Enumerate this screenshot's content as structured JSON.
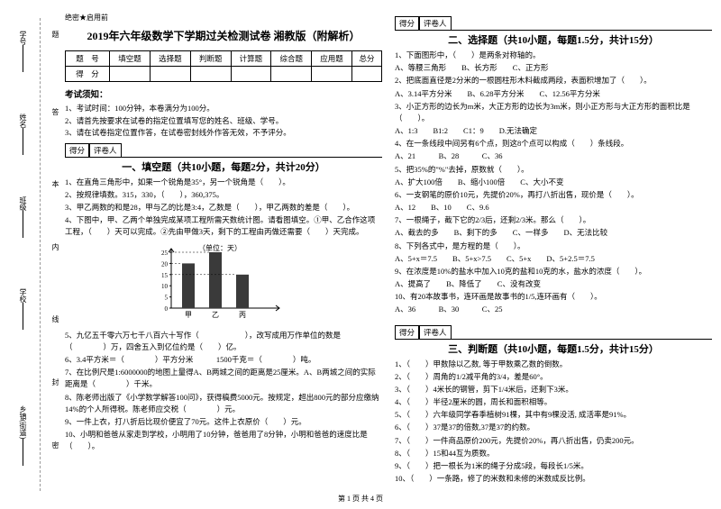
{
  "binding": {
    "secret": "绝密★启用前",
    "labels": [
      "学号",
      "姓名",
      "班级",
      "学校",
      "乡镇(街道)"
    ],
    "markers": [
      "题",
      "答",
      "本",
      "内",
      "线",
      "封",
      "密"
    ]
  },
  "header": {
    "title": "2019年六年级数学下学期过关检测试卷 湘教版（附解析）"
  },
  "scoreTable": {
    "r1": [
      "题　号",
      "填空题",
      "选择题",
      "判断题",
      "计算题",
      "综合题",
      "应用题",
      "总分"
    ],
    "r2": [
      "得　分",
      "",
      "",
      "",
      "",
      "",
      "",
      ""
    ]
  },
  "notice": {
    "h": "考试须知：",
    "l1": "1、考试时间：100分钟，本卷满分为100分。",
    "l2": "2、请首先按要求在试卷的指定位置填写您的姓名、班级、学号。",
    "l3": "3、请在试卷指定位置作答，在试卷密封线外作答无效，不予评分。"
  },
  "secHead": {
    "a": "得分",
    "b": "评卷人"
  },
  "sec1": {
    "title": "一、填空题（共10小题，每题2分，共计20分）",
    "q1": "1、在直角三角形中，如果一个锐角是35°，另一个锐角是（　　）。",
    "q2": "2、按规律填数。315，330，（　　），360,375。",
    "q3": "3、甲乙两数的和是28，甲与乙的比是3:4，乙数是（　　），甲乙两数的差是（　　）。",
    "q4": "4、下图中，甲、乙两个单独完成某项工程所需天数统计图。请看图填空。①甲、乙合作这项工程，（　　）天可以完成。②先由甲做3天，剩下的工程由丙做还需要（　　）天完成。",
    "q5": "5、九亿五千零六万七千八百六十写作（　　　　　　），改写成用万作单位的数是（　　　　）万，四舍五入到亿位约是（　　）亿。",
    "q6": "6、3.4平方米＝（　　　　）平方分米　　　1500千克＝（　　　　）吨。",
    "q7": "7、在比例尺是1:6000000的地图上量得A、B两城之间的距离是25厘米。A、B两城之间的实际距离是（　　　　）千米。",
    "q8": "8、陈老师出版了《小学数学解答100问》，获得稿费5000元。按规定，超出800元的部分应缴纳14%的个人所得税。陈老师应交税（　　　　）元。",
    "q9": "9、一件上衣，打八折后比现价便宜了70元。这件上衣原价（　　）元。",
    "q10": "10、小明和爸爸从家走到学校，小明用了10分钟，爸爸用了8分钟，小明和爸爸的速度比是（　　）。"
  },
  "chart": {
    "ylabel": "（单位：天）",
    "yticks": [
      "25",
      "20",
      "15",
      "10",
      "5",
      "0"
    ],
    "bars": [
      {
        "label": "甲",
        "value": 20,
        "color": "#3a3a3a"
      },
      {
        "label": "乙",
        "value": 25,
        "color": "#3a3a3a"
      },
      {
        "label": "丙",
        "value": 15,
        "color": "#3a3a3a"
      }
    ],
    "ymax": 25,
    "height": 62,
    "barWidth": 14,
    "gap": 16
  },
  "sec2": {
    "title": "二、选择题（共10小题，每题1.5分，共计15分）",
    "q1": "1、下面图形中，（　　）是两条对称轴的。",
    "q1o": "A、等腰三角形　　B、长方形　　C、正方形",
    "q2": "2、把底面直径是2分米的一根圆柱形木料截成两段，表面积增加了（　　）。",
    "q2o": "A、3.14平方分米　　B、6.28平方分米　　C、12.56平方分米",
    "q3": "3、小正方形的边长为m米，大正方形的边长为3m米，则小正方形与大正方形的面积比是（　　）。",
    "q3o": "A、1:3　　B1:2　　C1：9　　D.无法确定",
    "q4": "4、在一条线段中间另有6个点，则这8个点可以构成（　　）条线段。",
    "q4o": "A、21　　　B、28　　　C、36",
    "q5": "5、把35%的\"%\"去掉，原数就（　　）。",
    "q5o": "A、扩大100倍　　B、缩小100倍　　C、大小不变",
    "q6": "6、一支钢笔的原价10元，先提价20%，再打八折出售，现价是（　　）。",
    "q6o": "A、12　　B、10　　C、9.6",
    "q7": "7、一根绳子，截下它的2/3后，还剩2/3米。那么（　　）。",
    "q7o": "A、截去的多　　B、剩下的多　　C、一样多　　D、无法比较",
    "q8": "8、下列各式中，是方程的是（　　）。",
    "q8o": "A、5+x＝7.5　　B、5+x>7.5　　C、5+x　　D、5+2.5＝7.5",
    "q9": "9、在浓度是10%的盐水中加入10克的盐和10克的水，盐水的浓度（　　）。",
    "q9o": "A、提高了　　B、降低了　　C、没有改变",
    "q10": "10、有20本故事书，连环画是故事书的1/5,连环画有（　　）。",
    "q10o": "A、36　　　B、30　　　C、25"
  },
  "sec3": {
    "title": "三、判断题（共10小题，每题1.5分，共计15分）",
    "q1": "1、（　　）甲数除以乙数, 等于甲数乘乙数的倒数。",
    "q2": "2、（　　）周角的1/2减平角的3/4，差是60°。",
    "q3": "3、（　　）4米长的钢管，剪下1/4米后，还剩下3米。",
    "q4": "4、（　　）半径2厘米的圆，周长和面积相等。",
    "q5": "5、（　　）六年级同学春季植树91棵，其中有9棵没活, 成活率是91%。",
    "q6": "6、（　　）37是37的倍数,37是37的约数。",
    "q7": "7、（　　）一件商品原价200元，先提价20%，再八折出售，仍卖200元。",
    "q8": "8、（　　）15和44互为质数。",
    "q9": "9、（　　）把一根长为1米的绳子分成5段，每段长1/5米。",
    "q10": "10、（　　）一条路，修了的米数和未修的米数成反比例。"
  },
  "footer": "第 1 页 共 4 页"
}
